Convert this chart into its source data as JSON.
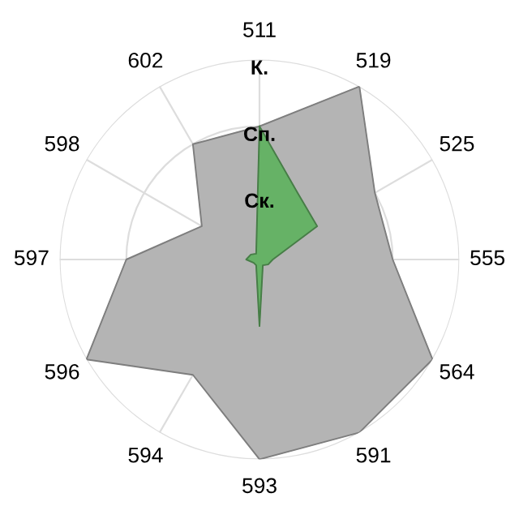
{
  "chart_data": {
    "type": "radar",
    "categories": [
      "511",
      "519",
      "525",
      "555",
      "564",
      "591",
      "593",
      "594",
      "596",
      "597",
      "598",
      "602"
    ],
    "series": [
      {
        "color": "#b4b4b4",
        "values": [
          2.0,
          3.0,
          2.0,
          2.0,
          3.0,
          3.0,
          3.0,
          2.0,
          3.0,
          2.0,
          1.0,
          2.0
        ]
      },
      {
        "color": "#66b266",
        "values": [
          2.0,
          1.15,
          1.0,
          0.2,
          0.15,
          0.1,
          1.0,
          0.1,
          0.1,
          0.2,
          0.15,
          0.1
        ]
      }
    ],
    "ylim": [
      0,
      3
    ],
    "yticks": [
      {
        "value": 1,
        "label": "Ск."
      },
      {
        "value": 2,
        "label": "Сп."
      },
      {
        "value": 3,
        "label": "К."
      }
    ],
    "grid": true,
    "marker": "none",
    "line_style": "solid"
  }
}
